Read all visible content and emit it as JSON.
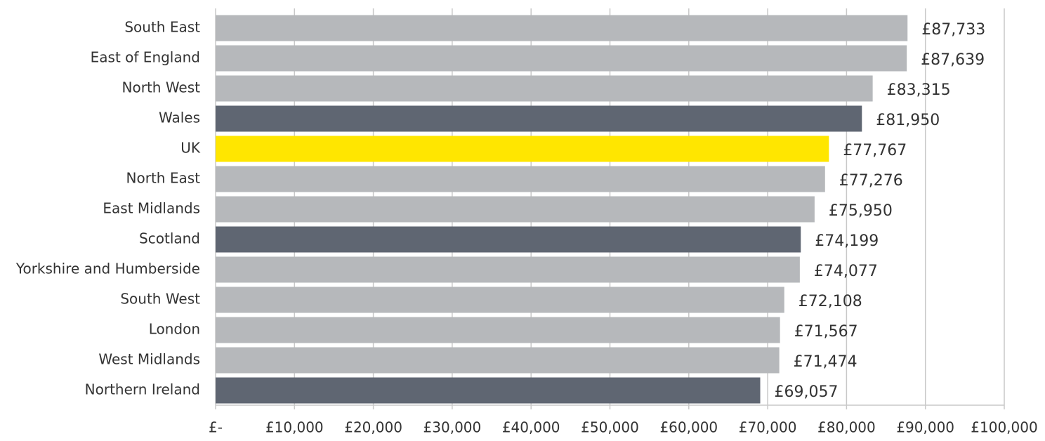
{
  "chart_data": {
    "type": "barh",
    "categories": [
      "South East",
      "East of England",
      "North West",
      "Wales",
      "UK",
      "North East",
      "East Midlands",
      "Scotland",
      "Yorkshire and Humberside",
      "South West",
      "London",
      "West Midlands",
      "Northern Ireland"
    ],
    "values": [
      87733,
      87639,
      83315,
      81950,
      77767,
      77276,
      75950,
      74199,
      74077,
      72108,
      71567,
      71474,
      69057
    ],
    "value_labels": [
      "£87,733",
      "£87,639",
      "£83,315",
      "£81,950",
      "£77,767",
      "£77,276",
      "£75,950",
      "£74,199",
      "£74,077",
      "£72,108",
      "£71,567",
      "£71,474",
      "£69,057"
    ],
    "colors": [
      "#b6b8bb",
      "#b6b8bb",
      "#b6b8bb",
      "#5f6672",
      "#ffe600",
      "#b6b8bb",
      "#b6b8bb",
      "#5f6672",
      "#b6b8bb",
      "#b6b8bb",
      "#b6b8bb",
      "#b6b8bb",
      "#5f6672"
    ],
    "xlim": [
      0,
      100000
    ],
    "xticks": [
      {
        "value": 0,
        "label": "£-"
      },
      {
        "value": 10000,
        "label": "£10,000"
      },
      {
        "value": 20000,
        "label": "£20,000"
      },
      {
        "value": 30000,
        "label": "£30,000"
      },
      {
        "value": 40000,
        "label": "£40,000"
      },
      {
        "value": 50000,
        "label": "£50,000"
      },
      {
        "value": 60000,
        "label": "£60,000"
      },
      {
        "value": 70000,
        "label": "£70,000"
      },
      {
        "value": 80000,
        "label": "£80,000"
      },
      {
        "value": 90000,
        "label": "£90,000"
      },
      {
        "value": 100000,
        "label": "£100,000"
      }
    ],
    "grid": true
  }
}
